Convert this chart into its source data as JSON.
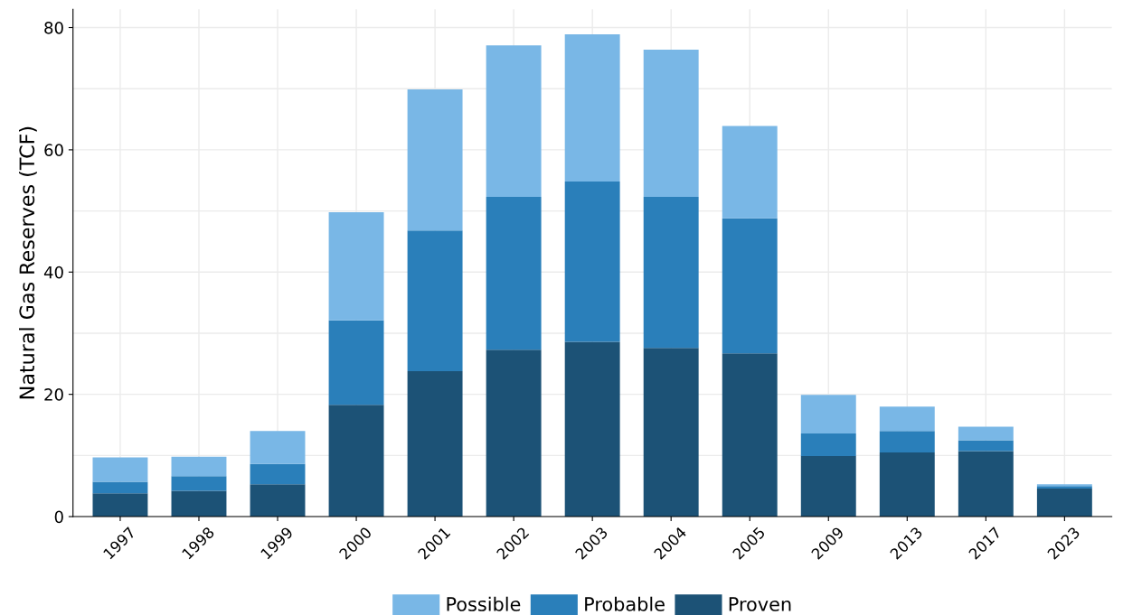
{
  "chart_data": {
    "type": "bar",
    "stacked": true,
    "ylabel": "Natural Gas Reserves (TCF)",
    "categories": [
      "1997",
      "1998",
      "1999",
      "2000",
      "2001",
      "2002",
      "2003",
      "2004",
      "2005",
      "2009",
      "2013",
      "2017",
      "2023"
    ],
    "series": [
      {
        "name": "Proven",
        "color": "#1c5276",
        "values": [
          3.8,
          4.2,
          5.3,
          18.3,
          23.8,
          27.3,
          28.6,
          27.6,
          26.7,
          9.9,
          10.5,
          10.7,
          4.6
        ]
      },
      {
        "name": "Probable",
        "color": "#2a7fba",
        "values": [
          1.9,
          2.4,
          3.3,
          13.8,
          23.0,
          25.0,
          26.2,
          24.7,
          22.1,
          3.7,
          3.5,
          1.8,
          0.4
        ]
      },
      {
        "name": "Possible",
        "color": "#79b7e6",
        "values": [
          4.0,
          3.2,
          5.4,
          17.7,
          23.1,
          24.8,
          24.1,
          24.1,
          15.1,
          6.3,
          4.0,
          2.2,
          0.3
        ]
      }
    ],
    "ylim": [
      0,
      83
    ],
    "yticks": [
      0,
      {
        "value": 10,
        "label": null
      },
      20,
      {
        "value": 30,
        "label": null
      },
      40,
      {
        "value": 50,
        "label": null
      },
      60,
      {
        "value": 70,
        "label": null
      },
      80
    ],
    "grid": true,
    "legend": "bottom"
  }
}
